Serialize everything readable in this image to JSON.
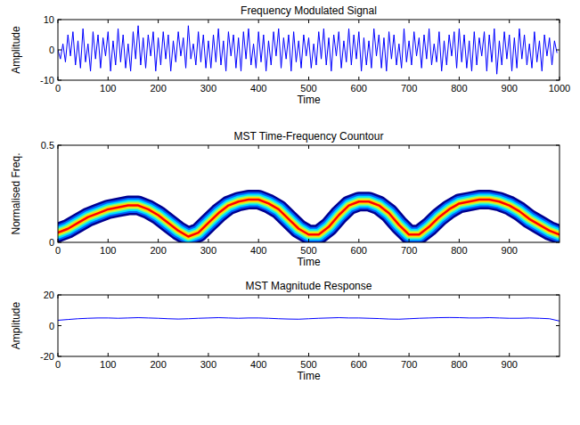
{
  "chart_data": [
    {
      "type": "line",
      "title": "Frequency Modulated Signal",
      "xlabel": "Time",
      "ylabel": "Amplitude",
      "x": [
        0,
        5,
        10,
        15,
        20,
        25,
        30,
        35,
        40,
        45,
        50,
        55,
        60,
        65,
        70,
        75,
        80,
        85,
        90,
        95,
        100,
        105,
        110,
        115,
        120,
        125,
        130,
        135,
        140,
        145,
        150,
        155,
        160,
        165,
        170,
        175,
        180,
        185,
        190,
        195,
        200,
        205,
        210,
        215,
        220,
        225,
        230,
        235,
        240,
        245,
        250,
        255,
        260,
        265,
        270,
        275,
        280,
        285,
        290,
        295,
        300,
        305,
        310,
        315,
        320,
        325,
        330,
        335,
        340,
        345,
        350,
        355,
        360,
        365,
        370,
        375,
        380,
        385,
        390,
        395,
        400,
        405,
        410,
        415,
        420,
        425,
        430,
        435,
        440,
        445,
        450,
        455,
        460,
        465,
        470,
        475,
        480,
        485,
        490,
        495,
        500,
        505,
        510,
        515,
        520,
        525,
        530,
        535,
        540,
        545,
        550,
        555,
        560,
        565,
        570,
        575,
        580,
        585,
        590,
        595,
        600,
        605,
        610,
        615,
        620,
        625,
        630,
        635,
        640,
        645,
        650,
        655,
        660,
        665,
        670,
        675,
        680,
        685,
        690,
        695,
        700,
        705,
        710,
        715,
        720,
        725,
        730,
        735,
        740,
        745,
        750,
        755,
        760,
        765,
        770,
        775,
        780,
        785,
        790,
        795,
        800,
        805,
        810,
        815,
        820,
        825,
        830,
        835,
        840,
        845,
        850,
        855,
        860,
        865,
        870,
        875,
        880,
        885,
        890,
        895,
        900,
        905,
        910,
        915,
        920,
        925,
        930,
        935,
        940,
        945,
        950,
        955,
        960,
        965,
        970,
        975,
        980,
        985,
        990,
        995
      ],
      "values": [
        0,
        -3,
        2,
        -4,
        5,
        -2,
        6,
        -5,
        3,
        -6,
        7,
        -4,
        2,
        -7,
        6,
        -3,
        5,
        -6,
        4,
        -2,
        6,
        -7,
        3,
        -5,
        7,
        -4,
        5,
        -6,
        2,
        -7,
        6,
        -3,
        8,
        -5,
        4,
        -6,
        5,
        -2,
        6,
        -7,
        4,
        -5,
        6,
        -3,
        5,
        -7,
        3,
        -4,
        6,
        -2,
        4,
        -6,
        8,
        -3,
        2,
        -5,
        6,
        -4,
        5,
        -6,
        3,
        -6,
        5,
        -4,
        7,
        -5,
        3,
        -7,
        6,
        -2,
        5,
        -6,
        4,
        -7,
        6,
        -3,
        7,
        -5,
        2,
        -6,
        6,
        -4,
        5,
        -7,
        3,
        -5,
        6,
        -2,
        7,
        -6,
        4,
        -3,
        5,
        -7,
        6,
        -4,
        3,
        -6,
        5,
        -2,
        4,
        -6,
        2,
        -5,
        6,
        -3,
        7,
        -5,
        4,
        -7,
        5,
        -2,
        6,
        -6,
        3,
        -4,
        7,
        -5,
        5,
        -3,
        6,
        -7,
        4,
        -5,
        3,
        -6,
        7,
        -2,
        5,
        -6,
        4,
        -7,
        6,
        -3,
        5,
        -5,
        2,
        -6,
        7,
        -4,
        3,
        -5,
        6,
        -2,
        4,
        -6,
        5,
        -3,
        7,
        -5,
        2,
        -4,
        6,
        -7,
        3,
        -5,
        5,
        -2,
        6,
        -6,
        7,
        -4,
        5,
        -6,
        3,
        -7,
        6,
        -5,
        4,
        -2,
        6,
        -7,
        5,
        -4,
        7,
        -8,
        3,
        -5,
        6,
        -3,
        5,
        -7,
        4,
        -6,
        7,
        -3,
        5,
        -5,
        2,
        -6,
        6,
        -4,
        3,
        -7,
        5,
        -2,
        4,
        -5,
        3,
        -1
      ],
      "color": "#0000ff",
      "xlim": [
        0,
        1000
      ],
      "ylim": [
        -10,
        10
      ],
      "xticks": [
        0,
        100,
        200,
        300,
        400,
        500,
        600,
        700,
        800,
        900,
        1000
      ],
      "yticks": [
        -10,
        0,
        10
      ]
    },
    {
      "type": "contour",
      "title": "MST Time-Frequency Countour",
      "xlabel": "Time",
      "ylabel": "Normalised Freq.",
      "x": [
        0,
        20,
        40,
        60,
        80,
        100,
        120,
        140,
        160,
        180,
        200,
        220,
        240,
        260,
        280,
        300,
        320,
        340,
        360,
        380,
        400,
        420,
        440,
        460,
        480,
        500,
        520,
        540,
        560,
        580,
        600,
        620,
        640,
        660,
        680,
        700,
        720,
        740,
        760,
        780,
        800,
        820,
        840,
        860,
        880,
        900,
        920,
        940,
        960,
        980,
        1000
      ],
      "values": [
        0.05,
        0.07,
        0.1,
        0.13,
        0.15,
        0.17,
        0.18,
        0.19,
        0.19,
        0.17,
        0.14,
        0.1,
        0.06,
        0.03,
        0.05,
        0.1,
        0.15,
        0.19,
        0.21,
        0.22,
        0.22,
        0.2,
        0.17,
        0.12,
        0.07,
        0.04,
        0.04,
        0.08,
        0.14,
        0.19,
        0.21,
        0.21,
        0.19,
        0.15,
        0.09,
        0.04,
        0.04,
        0.08,
        0.13,
        0.17,
        0.2,
        0.21,
        0.22,
        0.22,
        0.21,
        0.19,
        0.16,
        0.12,
        0.09,
        0.06,
        0.04
      ],
      "color": "#ff0000",
      "xlim": [
        0,
        1000
      ],
      "ylim": [
        0,
        0.5
      ],
      "xticks": [
        0,
        100,
        200,
        300,
        400,
        500,
        600,
        700,
        800,
        900
      ],
      "yticks": [
        0,
        0.5
      ]
    },
    {
      "type": "line",
      "title": "MST Magnitude Response",
      "xlabel": "Time",
      "ylabel": "Amplitude",
      "x": [
        0,
        20,
        40,
        60,
        80,
        100,
        120,
        140,
        160,
        180,
        200,
        220,
        240,
        260,
        280,
        300,
        320,
        340,
        360,
        380,
        400,
        420,
        440,
        460,
        480,
        500,
        520,
        540,
        560,
        580,
        600,
        620,
        640,
        660,
        680,
        700,
        720,
        740,
        760,
        780,
        800,
        820,
        840,
        860,
        880,
        900,
        920,
        940,
        960,
        980,
        1000
      ],
      "values": [
        3.5,
        4,
        4.5,
        4.8,
        5,
        5,
        4.8,
        5,
        5.2,
        5,
        4.8,
        4.5,
        4.3,
        4.5,
        4.8,
        5,
        5.2,
        5,
        4.8,
        5,
        5,
        4.8,
        4.5,
        4.3,
        4.2,
        4.5,
        4.8,
        5,
        5.2,
        5,
        5,
        4.8,
        4.6,
        4.3,
        4.2,
        4.5,
        4.8,
        5,
        5.2,
        5.3,
        5.2,
        5,
        5,
        5.2,
        5,
        4.8,
        4.8,
        5,
        4.8,
        4.5,
        3
      ],
      "color": "#0000ff",
      "xlim": [
        0,
        1000
      ],
      "ylim": [
        -20,
        20
      ],
      "xticks": [
        0,
        100,
        200,
        300,
        400,
        500,
        600,
        700,
        800,
        900
      ],
      "yticks": [
        -20,
        0,
        20
      ]
    }
  ]
}
